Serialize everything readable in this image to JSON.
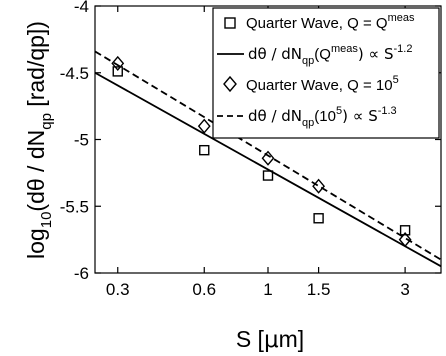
{
  "chart_data": {
    "type": "scatter",
    "xscale": "log",
    "xlim": [
      0.25,
      4.0
    ],
    "ylim": [
      -6.0,
      -4.0
    ],
    "grid": false,
    "legend_position": "top-right",
    "xlabel": {
      "main": "S [",
      "mu": "μ",
      "rest": "m]"
    },
    "ylabel": {
      "p1": "log",
      "sub1": "10",
      "p2": "(dθ / dN",
      "sub2": "qp",
      "p3": " [rad/qp])"
    },
    "xticks": [
      0.3,
      0.6,
      1,
      1.5,
      3
    ],
    "xtick_labels": [
      "0.3",
      "0.6",
      "1",
      "1.5",
      "3"
    ],
    "yticks": [
      -4.0,
      -4.5,
      -5.0,
      -5.5,
      -6.0
    ],
    "ytick_labels": [
      "-4",
      "-4.5",
      "-5",
      "-5.5",
      "-6"
    ],
    "series": [
      {
        "key": "qw_meas",
        "marker": "square",
        "points": [
          [
            0.3,
            -4.49
          ],
          [
            0.6,
            -5.08
          ],
          [
            1.0,
            -5.27
          ],
          [
            1.5,
            -5.59
          ],
          [
            3.0,
            -5.68
          ]
        ],
        "legend": {
          "pre": "Quarter Wave, Q = Q",
          "sup": "meas"
        }
      },
      {
        "key": "qw_1e5",
        "marker": "diamond",
        "points": [
          [
            0.3,
            -4.43
          ],
          [
            0.6,
            -4.9
          ],
          [
            1.0,
            -5.14
          ],
          [
            1.5,
            -5.35
          ],
          [
            3.0,
            -5.75
          ]
        ],
        "legend": {
          "pre": "Quarter Wave, Q = 10",
          "sup": "5"
        }
      }
    ],
    "fits": [
      {
        "key": "fit_meas",
        "style": "solid",
        "slope": -1.2,
        "x_range": [
          0.25,
          4.0
        ],
        "y_range": [
          -4.5,
          -5.95
        ],
        "legend": {
          "a": "dθ / dN",
          "b": "qp",
          "c": "(Q",
          "d": "meas",
          "e": ") ∝ S",
          "f": "-1.2"
        }
      },
      {
        "key": "fit_1e5",
        "style": "dashed",
        "slope": -1.3,
        "x_range": [
          0.25,
          4.0
        ],
        "y_range": [
          -4.34,
          -5.9
        ],
        "legend": {
          "a": "dθ / dN",
          "b": "qp",
          "c": "(10",
          "d": "5",
          "e": ") ∝ S",
          "f": "-1.3"
        }
      }
    ]
  }
}
